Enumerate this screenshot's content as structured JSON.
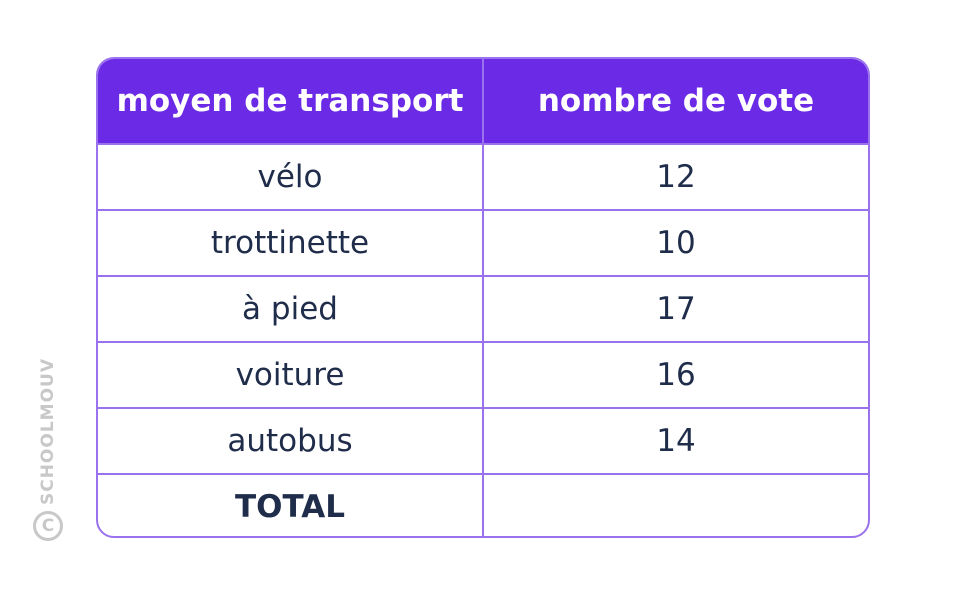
{
  "chart_data": {
    "type": "table",
    "columns": [
      "moyen de transport",
      "nombre de vote"
    ],
    "rows": [
      {
        "label": "vélo",
        "value": "12"
      },
      {
        "label": "trottinette",
        "value": "10"
      },
      {
        "label": "à pied",
        "value": "17"
      },
      {
        "label": "voiture",
        "value": "16"
      },
      {
        "label": "autobus",
        "value": "14"
      }
    ],
    "total": {
      "label": "TOTAL",
      "value": ""
    }
  },
  "watermark": {
    "text": "SCHOOLMOUV",
    "symbol": "C"
  },
  "colors": {
    "header_bg": "#6a2ae6",
    "border": "#9b72ee",
    "text": "#1f2d4a",
    "watermark": "#c8c8c8"
  }
}
